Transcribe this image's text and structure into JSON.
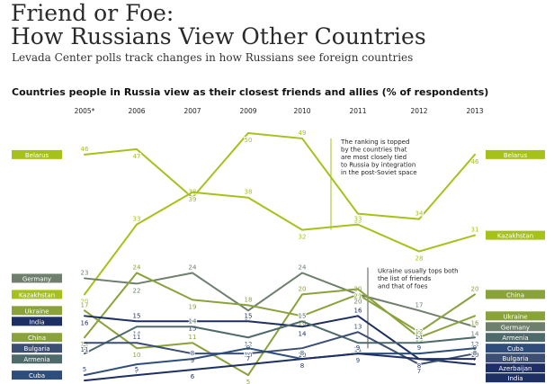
{
  "page": {
    "title_line1": "Friend or Foe:",
    "title_line2": "How Russians View Other Countries",
    "subtitle": "Levada Center polls track changes in how Russians see foreign countries"
  },
  "chart_data": {
    "type": "line",
    "title": "Countries people in Russia view as their closest friends and allies (% of respondents)",
    "x": [
      "2005*",
      "2006",
      "2007",
      "2009",
      "2010",
      "2011",
      "2012",
      "2013"
    ],
    "ylim": [
      0,
      52
    ],
    "grid": false,
    "legend": "labels at left and right ends of lines",
    "series": [
      {
        "name": "Belarus",
        "values": [
          46,
          47,
          38,
          50,
          49,
          35,
          34,
          46
        ],
        "color": "#a6c21a",
        "left_label": "Belarus",
        "right_label": "Belarus"
      },
      {
        "name": "Kazakhstan",
        "values": [
          20,
          33,
          39,
          38,
          32,
          33,
          28,
          31
        ],
        "color": "#a6c21a",
        "left_label": "Kazakhstan",
        "right_label": "Kazakhstan"
      },
      {
        "name": "Germany",
        "values": [
          23,
          22,
          24,
          17,
          24,
          20,
          17,
          14
        ],
        "color": "#6e7f6e",
        "left_label": "Germany",
        "right_label": "Germany"
      },
      {
        "name": "China",
        "values": [
          12,
          24,
          19,
          18,
          16,
          20,
          13,
          20
        ],
        "color": "#8aa23a",
        "left_label": "China",
        "right_label": "China"
      },
      {
        "name": "Ukraine",
        "values": [
          17,
          10,
          11,
          5,
          20,
          21,
          12,
          16
        ],
        "color": "#8aa23a",
        "left_label": "Ukraine",
        "right_label": "Ukraine"
      },
      {
        "name": "India",
        "values": [
          16,
          15,
          15,
          15,
          14,
          16,
          8,
          7
        ],
        "color": "#1e2f63",
        "left_label": "India",
        "right_label": "India"
      },
      {
        "name": "Armenia",
        "values": [
          9,
          14,
          14,
          12,
          15,
          11,
          11,
          12
        ],
        "color": "#4e6a6a",
        "left_label": "Armenia",
        "right_label": "Armenia"
      },
      {
        "name": "Bulgaria",
        "values": [
          11,
          11,
          9,
          9,
          10,
          13,
          7,
          9
        ],
        "color": "#3c4e73",
        "left_label": "Bulgaria",
        "right_label": "Bulgaria"
      },
      {
        "name": "Cuba",
        "values": [
          5,
          7,
          8,
          10,
          8,
          9,
          9,
          10
        ],
        "color": "#2e4d7a",
        "left_label": "Cuba",
        "right_label": "Cuba"
      },
      {
        "name": "Azerbaijan",
        "values": [
          4,
          5,
          6,
          7,
          8,
          9,
          8,
          8
        ],
        "color": "#1e2f63",
        "left_label": "",
        "right_label": "Azerbaijan"
      }
    ],
    "annotations": [
      {
        "text": [
          "The ranking is topped",
          "by the countries that",
          "are most closely tied",
          "to Russia by integration",
          "in the post-Soviet space"
        ],
        "after_index": 4,
        "line_top": 49,
        "line_bottom": 32
      },
      {
        "text": [
          "Ukraine usually tops both",
          "the list of friends",
          "and that of foes"
        ],
        "after_index": 5,
        "line_top": 25,
        "line_bottom": 10
      }
    ]
  }
}
